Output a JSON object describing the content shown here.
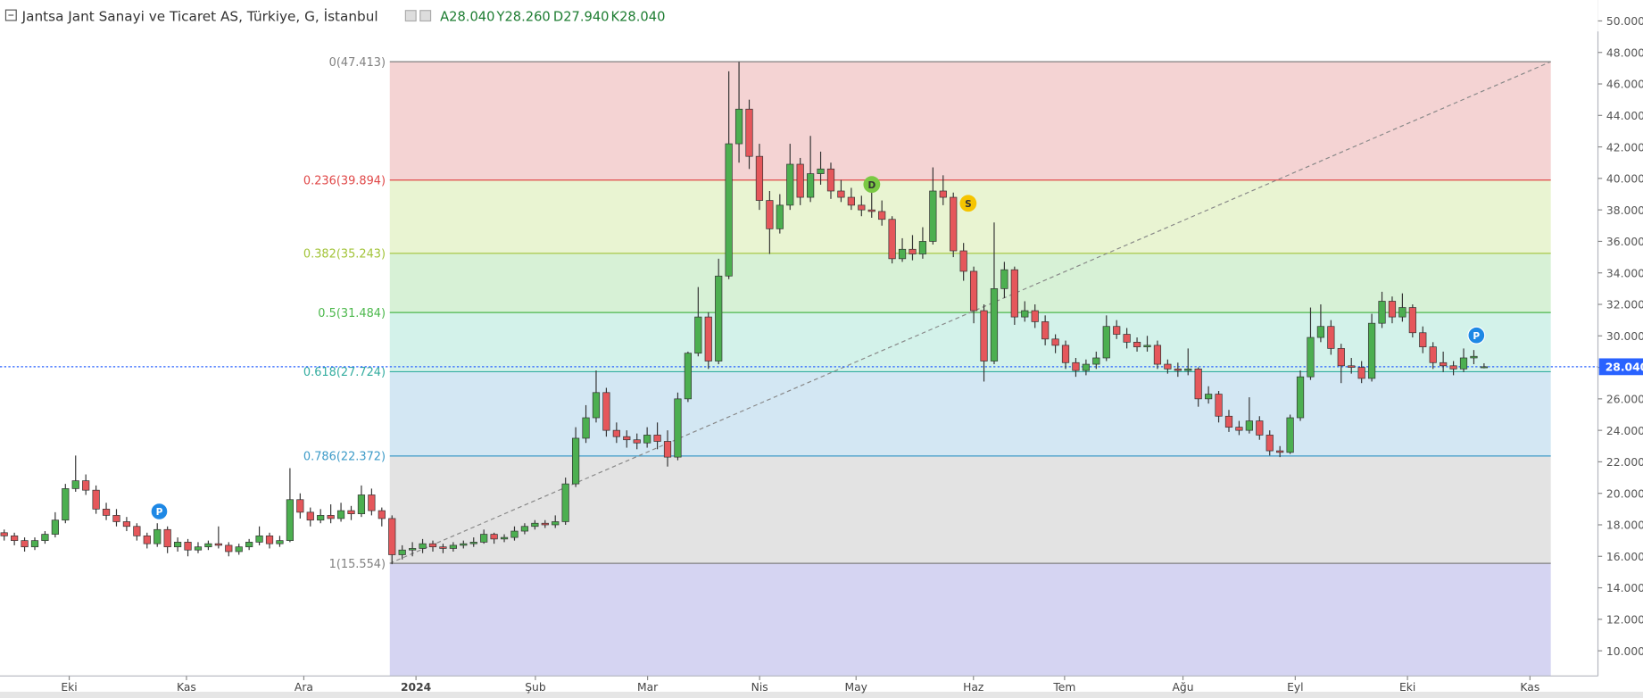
{
  "chart_data": {
    "type": "candlestick",
    "header": {
      "title": "Jantsa Jant Sanayi ve Ticaret AS, Türkiye, G, İstanbul",
      "ohlc_labels": [
        "A28.040",
        "Y28.260",
        "D27.940",
        "K28.040"
      ]
    },
    "up_color": "#4caf50",
    "down_color": "#e5575b",
    "wick_color": "#333333",
    "ylim": [
      8.4,
      51.33
    ],
    "yticks": [
      {
        "value": 10,
        "label": "10.000"
      },
      {
        "value": 12,
        "label": "12.000"
      },
      {
        "value": 14,
        "label": "14.000"
      },
      {
        "value": 16,
        "label": "16.000"
      },
      {
        "value": 18,
        "label": "18.000"
      },
      {
        "value": 20,
        "label": "20.000"
      },
      {
        "value": 22,
        "label": "22.000"
      },
      {
        "value": 24,
        "label": "24.000"
      },
      {
        "value": 26,
        "label": "26.000"
      },
      {
        "value": 28,
        "label": "28.000"
      },
      {
        "value": 30,
        "label": "30.000"
      },
      {
        "value": 32,
        "label": "32.000"
      },
      {
        "value": 34,
        "label": "34.000"
      },
      {
        "value": 36,
        "label": "36.000"
      },
      {
        "value": 38,
        "label": "38.000"
      },
      {
        "value": 40,
        "label": "40.000"
      },
      {
        "value": 42,
        "label": "42.000"
      },
      {
        "value": 44,
        "label": "44.000"
      },
      {
        "value": 46,
        "label": "46.000"
      },
      {
        "value": 48,
        "label": "48.000"
      },
      {
        "value": 50,
        "label": "50.000"
      }
    ],
    "xlim": [
      -0.41,
      156.16
    ],
    "xticks": [
      {
        "value": 6.37,
        "label": "Eki"
      },
      {
        "value": 17.86,
        "label": "Kas"
      },
      {
        "value": 29.36,
        "label": "Ara"
      },
      {
        "value": 40.35,
        "label": "2024"
      },
      {
        "value": 52.05,
        "label": "Şub"
      },
      {
        "value": 63.04,
        "label": "Mar"
      },
      {
        "value": 74.02,
        "label": "Nis"
      },
      {
        "value": 83.47,
        "label": "May"
      },
      {
        "value": 94.97,
        "label": "Haz"
      },
      {
        "value": 103.9,
        "label": "Tem"
      },
      {
        "value": 115.5,
        "label": "Ağu"
      },
      {
        "value": 126.5,
        "label": "Eyl"
      },
      {
        "value": 137.5,
        "label": "Eki"
      },
      {
        "value": 149.5,
        "label": "Kas"
      }
    ],
    "last": {
      "value": 28.04,
      "label": "28.040",
      "color": "#2962ff"
    },
    "fib": [
      {
        "label": "0(47.413)",
        "value": 47.413,
        "color": "#808080",
        "fill": "#f4d3d3"
      },
      {
        "label": "0.236(39.894)",
        "value": 39.894,
        "color": "#e04848",
        "fill": "#e9f4d2"
      },
      {
        "label": "0.382(35.243)",
        "value": 35.243,
        "color": "#a3c43a",
        "fill": "#d7f1d6"
      },
      {
        "label": "0.5(31.484)",
        "value": 31.484,
        "color": "#4cb84c",
        "fill": "#d3f2ea"
      },
      {
        "label": "0.618(27.724)",
        "value": 27.724,
        "color": "#35ada0",
        "fill": "#d3e7f3"
      },
      {
        "label": "0.786(22.372)",
        "value": 22.372,
        "color": "#3d9bc8",
        "fill": "#e3e3e3"
      },
      {
        "label": "1(15.554)",
        "value": 15.554,
        "color": "#808080",
        "fill": "#d5d4f2"
      }
    ],
    "markers": [
      {
        "label": "D",
        "color": "#7ac943"
      },
      {
        "label": "S",
        "color": "#f5c400"
      },
      {
        "label": "P",
        "color": "#1e88e5"
      },
      {
        "label": "P",
        "color": "#1e88e5"
      }
    ],
    "ohlc": [
      [
        17.5,
        17.7,
        17.0,
        17.3
      ],
      [
        17.3,
        17.5,
        16.7,
        17.0
      ],
      [
        17.0,
        17.2,
        16.3,
        16.6
      ],
      [
        16.6,
        17.2,
        16.4,
        17.0
      ],
      [
        17.0,
        17.6,
        16.8,
        17.4
      ],
      [
        17.4,
        18.8,
        17.2,
        18.3
      ],
      [
        18.3,
        20.6,
        18.1,
        20.3
      ],
      [
        20.3,
        22.4,
        20.1,
        20.8
      ],
      [
        20.8,
        21.2,
        19.9,
        20.2
      ],
      [
        20.2,
        20.5,
        18.7,
        19.0
      ],
      [
        19.0,
        19.4,
        18.3,
        18.6
      ],
      [
        18.6,
        19.0,
        17.9,
        18.2
      ],
      [
        18.2,
        18.5,
        17.6,
        17.9
      ],
      [
        17.9,
        18.1,
        17.0,
        17.3
      ],
      [
        17.3,
        17.5,
        16.5,
        16.8
      ],
      [
        16.8,
        18.1,
        16.6,
        17.7
      ],
      [
        17.7,
        17.9,
        16.2,
        16.6
      ],
      [
        16.6,
        17.2,
        16.3,
        16.9
      ],
      [
        16.9,
        17.1,
        16.0,
        16.4
      ],
      [
        16.4,
        16.9,
        16.2,
        16.6
      ],
      [
        16.6,
        17.0,
        16.4,
        16.8
      ],
      [
        16.8,
        17.9,
        16.5,
        16.7
      ],
      [
        16.7,
        16.9,
        16.0,
        16.3
      ],
      [
        16.3,
        16.8,
        16.1,
        16.6
      ],
      [
        16.6,
        17.1,
        16.4,
        16.9
      ],
      [
        16.9,
        17.9,
        16.7,
        17.3
      ],
      [
        17.3,
        17.5,
        16.5,
        16.8
      ],
      [
        16.8,
        17.3,
        16.6,
        17.0
      ],
      [
        17.0,
        21.6,
        16.9,
        19.6
      ],
      [
        19.6,
        20.0,
        18.4,
        18.8
      ],
      [
        18.8,
        19.1,
        17.9,
        18.3
      ],
      [
        18.3,
        19.0,
        18.1,
        18.6
      ],
      [
        18.6,
        19.3,
        18.1,
        18.4
      ],
      [
        18.4,
        19.4,
        18.2,
        18.9
      ],
      [
        18.9,
        19.2,
        18.3,
        18.7
      ],
      [
        18.7,
        20.5,
        18.5,
        19.9
      ],
      [
        19.9,
        20.3,
        18.6,
        18.9
      ],
      [
        18.9,
        19.1,
        17.9,
        18.4
      ],
      [
        18.4,
        18.6,
        15.5,
        16.1
      ],
      [
        16.1,
        16.7,
        15.8,
        16.4
      ],
      [
        16.4,
        16.9,
        16.0,
        16.5
      ],
      [
        16.5,
        17.1,
        16.2,
        16.8
      ],
      [
        16.8,
        17.0,
        16.3,
        16.6
      ],
      [
        16.6,
        16.8,
        16.2,
        16.5
      ],
      [
        16.5,
        16.9,
        16.3,
        16.7
      ],
      [
        16.7,
        17.0,
        16.5,
        16.8
      ],
      [
        16.8,
        17.2,
        16.6,
        16.9
      ],
      [
        16.9,
        17.7,
        16.8,
        17.4
      ],
      [
        17.4,
        17.5,
        16.8,
        17.1
      ],
      [
        17.1,
        17.4,
        16.9,
        17.2
      ],
      [
        17.2,
        17.9,
        17.0,
        17.6
      ],
      [
        17.6,
        18.1,
        17.4,
        17.9
      ],
      [
        17.9,
        18.3,
        17.7,
        18.1
      ],
      [
        18.1,
        18.3,
        17.8,
        18.0
      ],
      [
        18.0,
        18.6,
        17.8,
        18.2
      ],
      [
        18.2,
        21.0,
        18.0,
        20.6
      ],
      [
        20.6,
        24.2,
        20.4,
        23.5
      ],
      [
        23.5,
        25.6,
        23.2,
        24.8
      ],
      [
        24.8,
        27.8,
        24.5,
        26.4
      ],
      [
        26.4,
        26.7,
        23.6,
        24.0
      ],
      [
        24.0,
        24.5,
        23.2,
        23.6
      ],
      [
        23.6,
        24.0,
        22.9,
        23.4
      ],
      [
        23.4,
        23.8,
        22.8,
        23.2
      ],
      [
        23.2,
        24.2,
        22.9,
        23.7
      ],
      [
        23.7,
        24.5,
        22.8,
        23.3
      ],
      [
        23.3,
        24.0,
        21.7,
        22.3
      ],
      [
        22.3,
        26.4,
        22.1,
        26.0
      ],
      [
        26.0,
        29.0,
        25.8,
        28.9
      ],
      [
        28.9,
        33.1,
        28.7,
        31.2
      ],
      [
        31.2,
        31.5,
        27.9,
        28.4
      ],
      [
        28.4,
        34.9,
        28.2,
        33.8
      ],
      [
        33.8,
        46.8,
        33.6,
        42.2
      ],
      [
        42.2,
        47.4,
        41.0,
        44.4
      ],
      [
        44.4,
        45.0,
        40.6,
        41.4
      ],
      [
        41.4,
        42.2,
        38.0,
        38.6
      ],
      [
        38.6,
        39.2,
        35.2,
        36.8
      ],
      [
        36.8,
        39.0,
        36.5,
        38.3
      ],
      [
        38.3,
        42.2,
        38.0,
        40.9
      ],
      [
        40.9,
        41.3,
        38.3,
        38.8
      ],
      [
        38.8,
        42.7,
        38.5,
        40.3
      ],
      [
        40.3,
        41.7,
        39.6,
        40.6
      ],
      [
        40.6,
        41.0,
        38.7,
        39.2
      ],
      [
        39.2,
        39.9,
        38.5,
        38.8
      ],
      [
        38.8,
        39.4,
        38.0,
        38.3
      ],
      [
        38.3,
        38.9,
        37.6,
        38.0
      ],
      [
        38.0,
        39.4,
        37.5,
        37.9
      ],
      [
        37.9,
        38.6,
        37.0,
        37.4
      ],
      [
        37.4,
        37.6,
        34.6,
        34.9
      ],
      [
        34.9,
        36.2,
        34.7,
        35.5
      ],
      [
        35.5,
        36.4,
        34.8,
        35.2
      ],
      [
        35.2,
        36.9,
        34.9,
        36.0
      ],
      [
        36.0,
        40.7,
        35.8,
        39.2
      ],
      [
        39.2,
        40.2,
        38.3,
        38.8
      ],
      [
        38.8,
        39.1,
        35.0,
        35.4
      ],
      [
        35.4,
        35.9,
        33.5,
        34.1
      ],
      [
        34.1,
        34.4,
        30.8,
        31.6
      ],
      [
        31.6,
        32.0,
        27.1,
        28.4
      ],
      [
        28.4,
        37.2,
        28.2,
        33.0
      ],
      [
        33.0,
        34.7,
        32.4,
        34.2
      ],
      [
        34.2,
        34.4,
        30.7,
        31.2
      ],
      [
        31.2,
        32.2,
        30.9,
        31.6
      ],
      [
        31.6,
        32.0,
        30.5,
        30.9
      ],
      [
        30.9,
        31.3,
        29.4,
        29.8
      ],
      [
        29.8,
        30.1,
        28.9,
        29.4
      ],
      [
        29.4,
        29.7,
        27.9,
        28.3
      ],
      [
        28.3,
        28.6,
        27.4,
        27.8
      ],
      [
        27.8,
        28.5,
        27.5,
        28.2
      ],
      [
        28.2,
        29.0,
        27.9,
        28.6
      ],
      [
        28.6,
        31.3,
        28.4,
        30.6
      ],
      [
        30.6,
        31.0,
        29.8,
        30.1
      ],
      [
        30.1,
        30.5,
        29.2,
        29.6
      ],
      [
        29.6,
        29.9,
        29.0,
        29.3
      ],
      [
        29.3,
        30.0,
        29.0,
        29.4
      ],
      [
        29.4,
        29.7,
        27.9,
        28.2
      ],
      [
        28.2,
        28.5,
        27.6,
        27.9
      ],
      [
        27.9,
        28.3,
        27.4,
        27.8
      ],
      [
        27.8,
        29.2,
        27.5,
        27.9
      ],
      [
        27.9,
        28.0,
        25.5,
        26.0
      ],
      [
        26.0,
        26.8,
        25.7,
        26.3
      ],
      [
        26.3,
        26.5,
        24.5,
        24.9
      ],
      [
        24.9,
        25.3,
        23.9,
        24.2
      ],
      [
        24.2,
        24.6,
        23.7,
        24.0
      ],
      [
        24.0,
        26.1,
        23.8,
        24.6
      ],
      [
        24.6,
        24.9,
        23.4,
        23.7
      ],
      [
        23.7,
        24.0,
        22.4,
        22.7
      ],
      [
        22.7,
        23.0,
        22.3,
        22.6
      ],
      [
        22.6,
        25.0,
        22.5,
        24.8
      ],
      [
        24.8,
        27.8,
        24.6,
        27.4
      ],
      [
        27.4,
        31.8,
        27.2,
        29.9
      ],
      [
        29.9,
        32.0,
        29.6,
        30.6
      ],
      [
        30.6,
        31.0,
        28.8,
        29.2
      ],
      [
        29.2,
        29.5,
        27.0,
        28.1
      ],
      [
        28.1,
        28.6,
        27.6,
        28.0
      ],
      [
        28.0,
        28.4,
        27.0,
        27.3
      ],
      [
        27.3,
        31.4,
        27.1,
        30.8
      ],
      [
        30.8,
        32.8,
        30.5,
        32.2
      ],
      [
        32.2,
        32.5,
        30.8,
        31.2
      ],
      [
        31.2,
        32.7,
        30.9,
        31.8
      ],
      [
        31.8,
        32.0,
        29.9,
        30.2
      ],
      [
        30.2,
        30.6,
        28.9,
        29.3
      ],
      [
        29.3,
        29.6,
        27.9,
        28.3
      ],
      [
        28.3,
        29.0,
        27.7,
        28.1
      ],
      [
        28.1,
        28.4,
        27.5,
        27.9
      ],
      [
        27.9,
        29.2,
        27.7,
        28.6
      ],
      [
        28.6,
        29.1,
        28.2,
        28.7
      ],
      [
        28.04,
        28.26,
        27.94,
        28.04
      ]
    ]
  }
}
